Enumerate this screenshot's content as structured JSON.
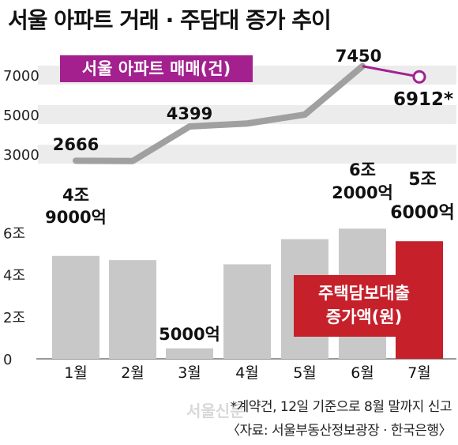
{
  "title": "서울 아파트 거래 · 주담대 증가 추이",
  "footnote": "*계약건, 12일 기준으로 8월 말까지 신고",
  "source": "〈자료: 서울부동산정보광장 · 한국은행〉",
  "watermark": "서울신문",
  "colors": {
    "line": "#a0a0a0",
    "line_highlight": "#a3208e",
    "bar": "#c8c8c8",
    "bar_highlight": "#c6202b",
    "band": "#ececec"
  },
  "chart_data": [
    {
      "type": "line",
      "legend": "서울 아파트 매매(건)",
      "categories": [
        "1월",
        "2월",
        "3월",
        "4월",
        "5월",
        "6월",
        "7월"
      ],
      "values": [
        2666,
        2650,
        4399,
        4550,
        5000,
        7450,
        6912
      ],
      "value_labels": [
        "2666",
        "",
        "4399",
        "",
        "",
        "7450",
        "6912*"
      ],
      "yticks": [
        "3000",
        "5000",
        "7000"
      ],
      "ylim": [
        2000,
        8000
      ]
    },
    {
      "type": "bar",
      "legend": [
        "주택담보대출",
        "증가액(원)"
      ],
      "categories": [
        "1월",
        "2월",
        "3월",
        "4월",
        "5월",
        "6월",
        "7월"
      ],
      "values": [
        4.9,
        4.7,
        0.5,
        4.5,
        5.7,
        6.2,
        5.6
      ],
      "value_labels": [
        [
          "4조",
          "9000억"
        ],
        [],
        [
          "5000억"
        ],
        [],
        [],
        [
          "6조",
          "2000억"
        ],
        [
          "5조",
          "6000억"
        ]
      ],
      "yticks": [
        "0",
        "2조",
        "4조",
        "6조"
      ],
      "ylim": [
        0,
        7
      ]
    }
  ]
}
